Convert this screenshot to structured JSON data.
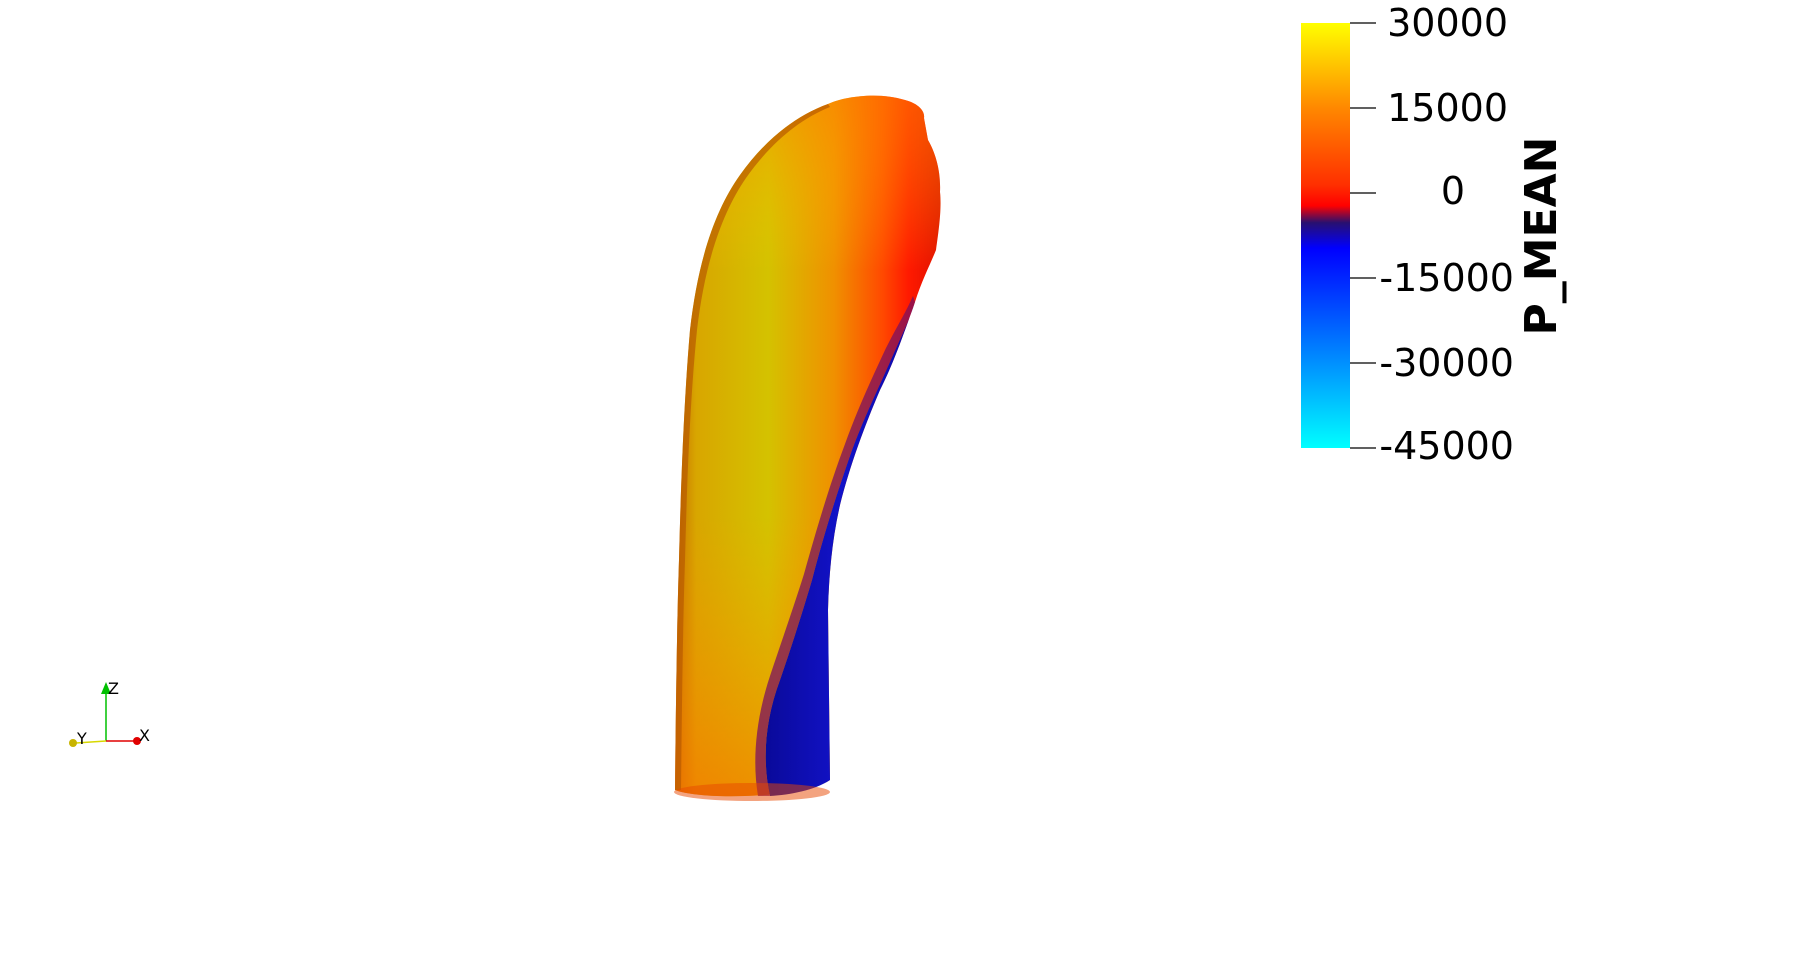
{
  "scalar_bar": {
    "title": "P_MEAN",
    "range": [
      -45000,
      30000
    ],
    "ticks": [
      "30000",
      "15000",
      "0",
      "-15000",
      "-30000",
      "-45000"
    ],
    "colormap": [
      {
        "value": 30000,
        "color": "#ffff00"
      },
      {
        "value": 15000,
        "color": "#ff8800"
      },
      {
        "value": 2000,
        "color": "#ff2200"
      },
      {
        "value": -2000,
        "color": "#ff0000"
      },
      {
        "value": -4500,
        "color": "#20106a"
      },
      {
        "value": -9000,
        "color": "#0000ff"
      },
      {
        "value": -30000,
        "color": "#0088ff"
      },
      {
        "value": -45000,
        "color": "#00ffff"
      }
    ]
  },
  "orientation_axes": {
    "x_label": "X",
    "y_label": "Y",
    "z_label": "Z",
    "x_color": "#e00000",
    "y_color": "#d8d800",
    "z_color": "#00c000"
  },
  "model": {
    "surface_colors": {
      "high": "#d4c200",
      "mid": "#ff8a00",
      "low": "#ff2000",
      "negative": "#1010c8"
    }
  }
}
